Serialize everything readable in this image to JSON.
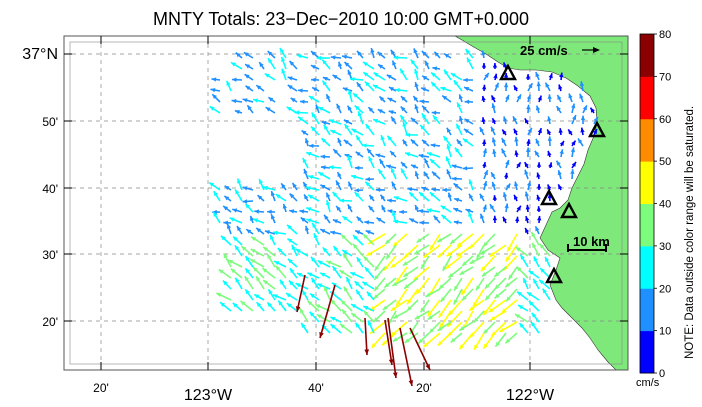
{
  "title": "MNTY Totals: 23−Dec−2010 10:00 GMT+0.000",
  "axes": {
    "left_labels": [
      {
        "text": "37°N",
        "big": true
      },
      {
        "text": "50'",
        "big": false
      },
      {
        "text": "40'",
        "big": false
      },
      {
        "text": "30'",
        "big": false
      },
      {
        "text": "20'",
        "big": false
      }
    ],
    "bottom_labels": [
      {
        "text": "20'",
        "big": false
      },
      {
        "text": "123°W",
        "big": true
      },
      {
        "text": "40'",
        "big": false
      },
      {
        "text": "20'",
        "big": false
      },
      {
        "text": "122°W",
        "big": true
      }
    ]
  },
  "legend": {
    "scale_text": "25 cm/s",
    "distance_scale_text": "10 km"
  },
  "colorbar": {
    "tick_labels": [
      "80",
      "70",
      "60",
      "50",
      "40",
      "30",
      "20",
      "10",
      "0"
    ],
    "colors": [
      "#0000ff",
      "#1e90ff",
      "#00ffff",
      "#7cfc7c",
      "#ffff00",
      "#ff8c00",
      "#ff0000",
      "#8b0000"
    ],
    "unit": "cm/s",
    "note": "NOTE: Data outside color range will be saturated."
  },
  "colors": {
    "land": "#7ee87a",
    "saturated": "#8b0000"
  },
  "stations": [
    {
      "name": "station-1"
    },
    {
      "name": "station-2"
    },
    {
      "name": "station-3"
    },
    {
      "name": "station-4"
    },
    {
      "name": "station-5"
    }
  ]
}
